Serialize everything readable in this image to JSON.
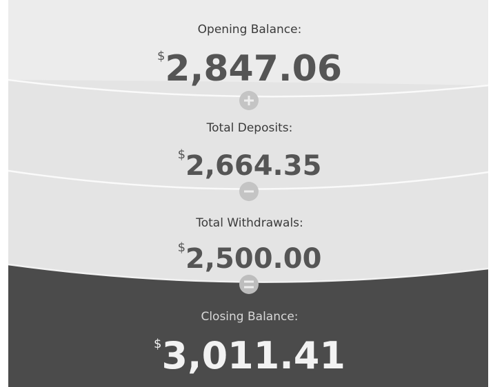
{
  "items": [
    {
      "label": "Opening Balance:",
      "currency": "$",
      "amount": "2,847.06"
    },
    {
      "label": "Total Deposits:",
      "currency": "$",
      "amount": "2,664.35"
    },
    {
      "label": "Total Withdrawals:",
      "currency": "$",
      "amount": "2,500.00"
    },
    {
      "label": "Closing Balance:",
      "currency": "$",
      "amount": "3,011.41"
    }
  ]
}
